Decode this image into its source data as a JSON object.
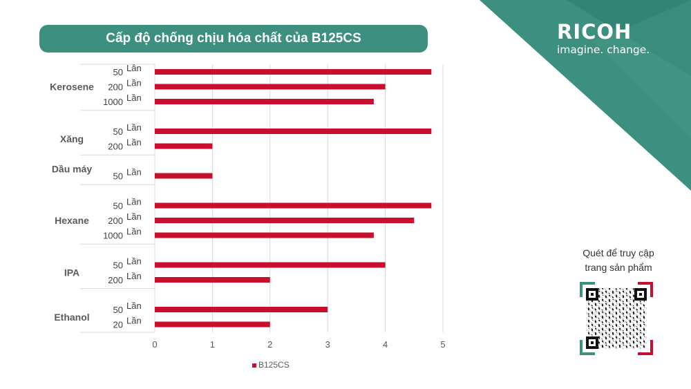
{
  "header": {
    "title": "Cấp độ chống chịu hóa chất của B125CS"
  },
  "brand": {
    "logo": "RICOH",
    "tagline": "imagine. change."
  },
  "qr": {
    "caption_line1": "Quét để truy cập",
    "caption_line2": "trang sản phẩm"
  },
  "colors": {
    "teal": "#3d8f7f",
    "bar": "#c8102e",
    "qr_green": "#3d8f7f",
    "qr_red": "#c8102e"
  },
  "chart_data": {
    "type": "bar",
    "orientation": "horizontal",
    "groups": [
      {
        "name": "Kerosene",
        "rows": [
          {
            "label": "50 Lần",
            "value": 4.8
          },
          {
            "label": "200 Lần",
            "value": 4
          },
          {
            "label": "1000 Lần",
            "value": 3.8
          }
        ]
      },
      {
        "name": "Xăng",
        "rows": [
          {
            "label": "50 Lần",
            "value": 4.8
          },
          {
            "label": "200 Lần",
            "value": 1
          }
        ]
      },
      {
        "name": "Dầu máy",
        "rows": [
          {
            "label": "50 Lần",
            "value": 1
          }
        ]
      },
      {
        "name": "Hexane",
        "rows": [
          {
            "label": "50 Lần",
            "value": 4.8
          },
          {
            "label": "200 Lần",
            "value": 4.5
          },
          {
            "label": "1000 Lần",
            "value": 3.8
          }
        ]
      },
      {
        "name": "IPA",
        "rows": [
          {
            "label": "50 Lần",
            "value": 4
          },
          {
            "label": "200 Lần",
            "value": 2
          }
        ]
      },
      {
        "name": "Ethanol",
        "rows": [
          {
            "label": "50 Lần",
            "value": 3
          },
          {
            "label": "20 Lần",
            "value": 2
          }
        ]
      }
    ],
    "x_ticks": [
      "0",
      "1",
      "2",
      "3",
      "4",
      "5"
    ],
    "xlim": [
      0,
      5
    ],
    "grid": true,
    "legend": {
      "position": "bottom",
      "entries": [
        "B125CS"
      ]
    }
  }
}
